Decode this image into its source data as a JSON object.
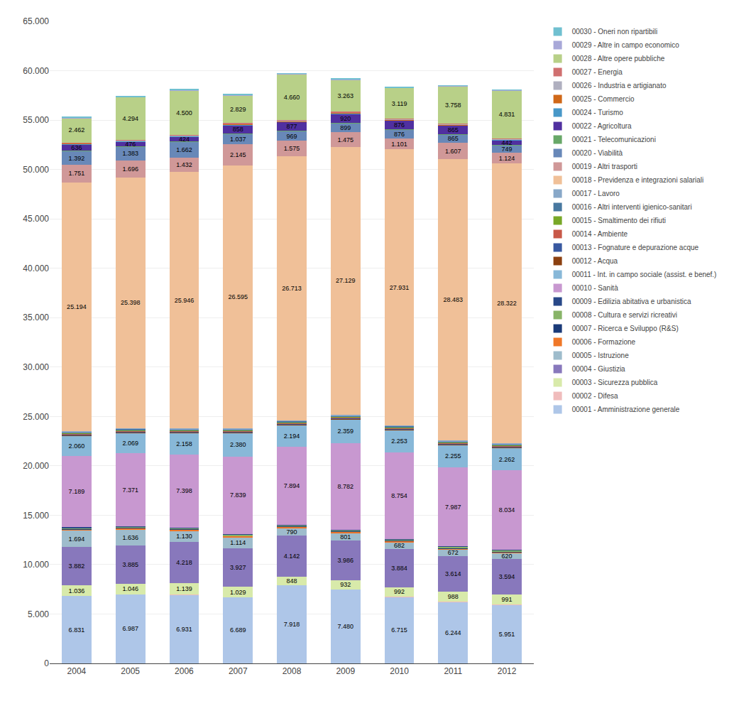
{
  "chart_data": {
    "type": "bar",
    "stacked": true,
    "grid": true,
    "legend": "right",
    "categories": [
      "2004",
      "2005",
      "2006",
      "2007",
      "2008",
      "2009",
      "2010",
      "2011",
      "2012"
    ],
    "ylim": [
      0,
      65000
    ],
    "yticks": [
      0,
      {
        "value": 5000,
        "label": "5.000"
      },
      {
        "value": 10000,
        "label": "10.000"
      },
      {
        "value": 15000,
        "label": "15.000"
      },
      {
        "value": 20000,
        "label": "20.000"
      },
      {
        "value": 25000,
        "label": "25.000"
      },
      {
        "value": 30000,
        "label": "30.000"
      },
      {
        "value": 35000,
        "label": "35.000"
      },
      {
        "value": 40000,
        "label": "40.000"
      },
      {
        "value": 45000,
        "label": "45.000"
      },
      {
        "value": 50000,
        "label": "50.000"
      },
      {
        "value": 55000,
        "label": "55.000"
      },
      {
        "value": 60000,
        "label": "60.000"
      },
      {
        "value": 65000,
        "label": "65.000"
      }
    ],
    "series": [
      {
        "name": "00001 - Amministrazione generale",
        "color": "#aec6e8",
        "values": [
          6831,
          6987,
          6931,
          6689,
          7918,
          7480,
          6715,
          6244,
          5951
        ],
        "data_labels": true,
        "value_labels": [
          "6.831",
          "6.987",
          "6.931",
          "6.689",
          "7.918",
          "7.480",
          "6.715",
          "6.244",
          "5.951"
        ]
      },
      {
        "name": "00002 - Difesa",
        "color": "#f0bcbc",
        "values": [
          20,
          20,
          20,
          20,
          20,
          20,
          20,
          20,
          20
        ]
      },
      {
        "name": "00003 - Sicurezza pubblica",
        "color": "#d8eaaa",
        "values": [
          1036,
          1046,
          1139,
          1029,
          848,
          932,
          992,
          988,
          991
        ],
        "data_labels": true,
        "value_labels": [
          "1.036",
          "1.046",
          "1.139",
          "1.029",
          "848",
          "932",
          "992",
          "988",
          "991"
        ]
      },
      {
        "name": "00004 - Giustizia",
        "color": "#8878bc",
        "values": [
          3882,
          3885,
          4218,
          3927,
          4142,
          3986,
          3884,
          3614,
          3594
        ],
        "data_labels": true,
        "value_labels": [
          "3.882",
          "3.885",
          "4.218",
          "3.927",
          "4.142",
          "3.986",
          "3.884",
          "3.614",
          "3.594"
        ]
      },
      {
        "name": "00005 - Istruzione",
        "color": "#9ebccc",
        "values": [
          1694,
          1636,
          1130,
          1114,
          790,
          801,
          682,
          672,
          620
        ],
        "data_labels": true,
        "value_labels": [
          "1.694",
          "1.636",
          "1.130",
          "1.114",
          "790",
          "801",
          "682",
          "672",
          "620"
        ]
      },
      {
        "name": "00006 - Formazione",
        "color": "#f07828",
        "values": [
          100,
          100,
          100,
          100,
          100,
          100,
          100,
          100,
          100
        ]
      },
      {
        "name": "00007 - Ricerca e Sviluppo (R&S)",
        "color": "#1a3a78",
        "values": [
          60,
          60,
          60,
          60,
          60,
          60,
          60,
          60,
          60
        ]
      },
      {
        "name": "00008 - Cultura e servizi ricreativi",
        "color": "#88b468",
        "values": [
          100,
          100,
          100,
          100,
          100,
          100,
          100,
          100,
          100
        ]
      },
      {
        "name": "00009 - Edilizia abitativa e urbanistica",
        "color": "#284888",
        "values": [
          60,
          60,
          60,
          60,
          60,
          60,
          60,
          60,
          60
        ]
      },
      {
        "name": "00010 - Sanità",
        "color": "#c898d0",
        "values": [
          7189,
          7371,
          7398,
          7839,
          7894,
          8782,
          8754,
          7987,
          8034
        ],
        "data_labels": true,
        "value_labels": [
          "7.189",
          "7.371",
          "7.398",
          "7.839",
          "7.894",
          "8.782",
          "8.754",
          "7.987",
          "8.034"
        ]
      },
      {
        "name": "00011 - Int. in campo sociale (assist. e benef.)",
        "color": "#88b8d8",
        "values": [
          2060,
          2069,
          2158,
          2380,
          2194,
          2359,
          2253,
          2255,
          2262
        ],
        "data_labels": true,
        "value_labels": [
          "2.060",
          "2.069",
          "2.158",
          "2.380",
          "2.194",
          "2.359",
          "2.253",
          "2.255",
          "2.262"
        ]
      },
      {
        "name": "00012 - Acqua",
        "color": "#8b4010",
        "values": [
          80,
          80,
          80,
          80,
          80,
          80,
          80,
          80,
          80
        ]
      },
      {
        "name": "00013 - Fognature e depurazione acque",
        "color": "#3858a0",
        "values": [
          80,
          80,
          80,
          80,
          80,
          80,
          80,
          80,
          80
        ]
      },
      {
        "name": "00014 - Ambiente",
        "color": "#c85848",
        "values": [
          80,
          80,
          80,
          80,
          80,
          80,
          80,
          80,
          80
        ]
      },
      {
        "name": "00015 - Smaltimento dei rifiuti",
        "color": "#78a828",
        "values": [
          80,
          80,
          80,
          80,
          80,
          80,
          80,
          80,
          80
        ]
      },
      {
        "name": "00016 - Altri interventi igienico-sanitari",
        "color": "#4878a0",
        "values": [
          80,
          80,
          80,
          80,
          80,
          80,
          80,
          80,
          80
        ]
      },
      {
        "name": "00017 - Lavoro",
        "color": "#88a8c8",
        "values": [
          80,
          80,
          80,
          80,
          80,
          80,
          80,
          80,
          80
        ]
      },
      {
        "name": "00018 - Previdenza e integrazioni salariali",
        "color": "#f0c098",
        "values": [
          25194,
          25398,
          25946,
          26595,
          26713,
          27129,
          27931,
          28483,
          28322
        ],
        "data_labels": true,
        "value_labels": [
          "25.194",
          "25.398",
          "25.946",
          "26.595",
          "26.713",
          "27.129",
          "27.931",
          "28.483",
          "28.322"
        ]
      },
      {
        "name": "00019 - Altri trasporti",
        "color": "#d09898",
        "values": [
          1751,
          1696,
          1432,
          2145,
          1575,
          1475,
          1101,
          1607,
          1124
        ],
        "data_labels": true,
        "value_labels": [
          "1.751",
          "1.696",
          "1.432",
          "2.145",
          "1.575",
          "1.475",
          "1.101",
          "1.607",
          "1.124"
        ]
      },
      {
        "name": "00020 - Viabilità",
        "color": "#6888b8",
        "values": [
          1392,
          1383,
          1662,
          1037,
          969,
          899,
          876,
          865,
          749
        ],
        "data_labels": true,
        "value_labels": [
          "1.392",
          "1.383",
          "1.662",
          "1.037",
          "969",
          "899",
          "876",
          "865",
          "749"
        ]
      },
      {
        "name": "00021 - Telecomunicazioni",
        "color": "#68a868",
        "values": [
          50,
          50,
          50,
          50,
          50,
          50,
          50,
          50,
          50
        ]
      },
      {
        "name": "00022 - Agricoltura",
        "color": "#5030a0",
        "values": [
          636,
          476,
          424,
          858,
          877,
          920,
          876,
          865,
          442
        ],
        "data_labels": true,
        "value_labels": [
          "636",
          "476",
          "424",
          "858",
          "877",
          "920",
          "876",
          "865",
          "442"
        ]
      },
      {
        "name": "00024 - Turismo",
        "color": "#4898c8",
        "values": [
          50,
          50,
          50,
          50,
          50,
          50,
          50,
          50,
          50
        ]
      },
      {
        "name": "00025 - Commercio",
        "color": "#d06818",
        "values": [
          50,
          50,
          50,
          50,
          50,
          50,
          50,
          50,
          50
        ]
      },
      {
        "name": "00026 - Industria e artigianato",
        "color": "#b0b0c0",
        "values": [
          50,
          50,
          50,
          50,
          50,
          50,
          50,
          50,
          50
        ]
      },
      {
        "name": "00027 - Energia",
        "color": "#d07070",
        "values": [
          50,
          50,
          50,
          50,
          50,
          50,
          50,
          50,
          50
        ]
      },
      {
        "name": "00028 - Altre opere pubbliche",
        "color": "#b8d088",
        "values": [
          2462,
          4294,
          4500,
          2829,
          4660,
          3263,
          3119,
          3758,
          4831
        ],
        "data_labels": true,
        "value_labels": [
          "2.462",
          "4.294",
          "4.500",
          "2.829",
          "4.660",
          "3.263",
          "3.119",
          "3.758",
          "4.831"
        ]
      },
      {
        "name": "00029 - Altre in campo economico",
        "color": "#a8a8d8",
        "values": [
          50,
          50,
          50,
          50,
          50,
          50,
          50,
          50,
          50
        ]
      },
      {
        "name": "00030 - Oneri non ripartibili",
        "color": "#70c0d0",
        "values": [
          50,
          50,
          50,
          50,
          50,
          50,
          50,
          50,
          50
        ]
      }
    ]
  }
}
